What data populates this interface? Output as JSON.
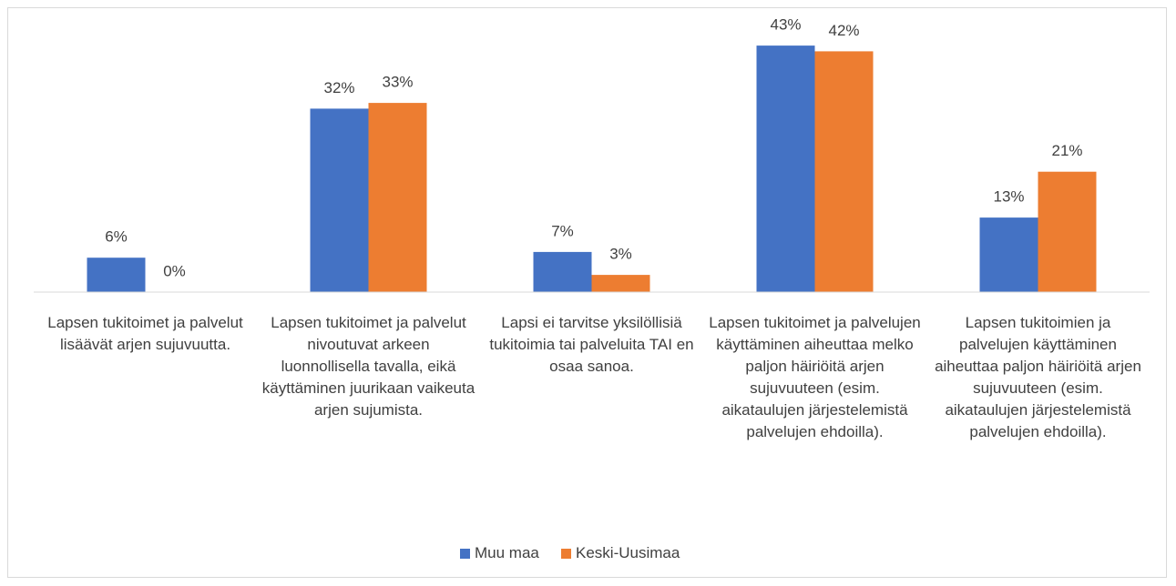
{
  "chart_data": {
    "type": "bar",
    "categories": [
      "Lapsen tukitoimet ja palvelut lisäävät arjen sujuvuutta.",
      "Lapsen tukitoimet ja palvelut nivoutuvat arkeen luonnollisella tavalla, eikä käyttäminen juurikaan vaikeuta arjen sujumista.",
      "Lapsi ei tarvitse yksilöllisiä tukitoimia tai palveluita TAI en osaa sanoa.",
      "Lapsen tukitoimet ja palvelujen käyttäminen aiheuttaa melko paljon häiriöitä arjen sujuvuuteen (esim. aikataulujen järjestelemistä palvelujen ehdoilla).",
      "Lapsen tukitoimien ja palvelujen käyttäminen aiheuttaa paljon häiriöitä arjen sujuvuuteen (esim. aikataulujen järjestelemistä palvelujen ehdoilla)."
    ],
    "series": [
      {
        "name": "Muu maa",
        "color": "#4472c4",
        "values": [
          6,
          32,
          7,
          43,
          13
        ],
        "value_labels": [
          "6%",
          "32%",
          "7%",
          "43%",
          "13%"
        ]
      },
      {
        "name": "Keski-Uusimaa",
        "color": "#ed7d31",
        "values": [
          0,
          33,
          3,
          42,
          21
        ],
        "value_labels": [
          "0%",
          "33%",
          "3%",
          "42%",
          "21%"
        ]
      }
    ],
    "ylim": [
      0,
      50
    ],
    "legend": "bottom"
  }
}
